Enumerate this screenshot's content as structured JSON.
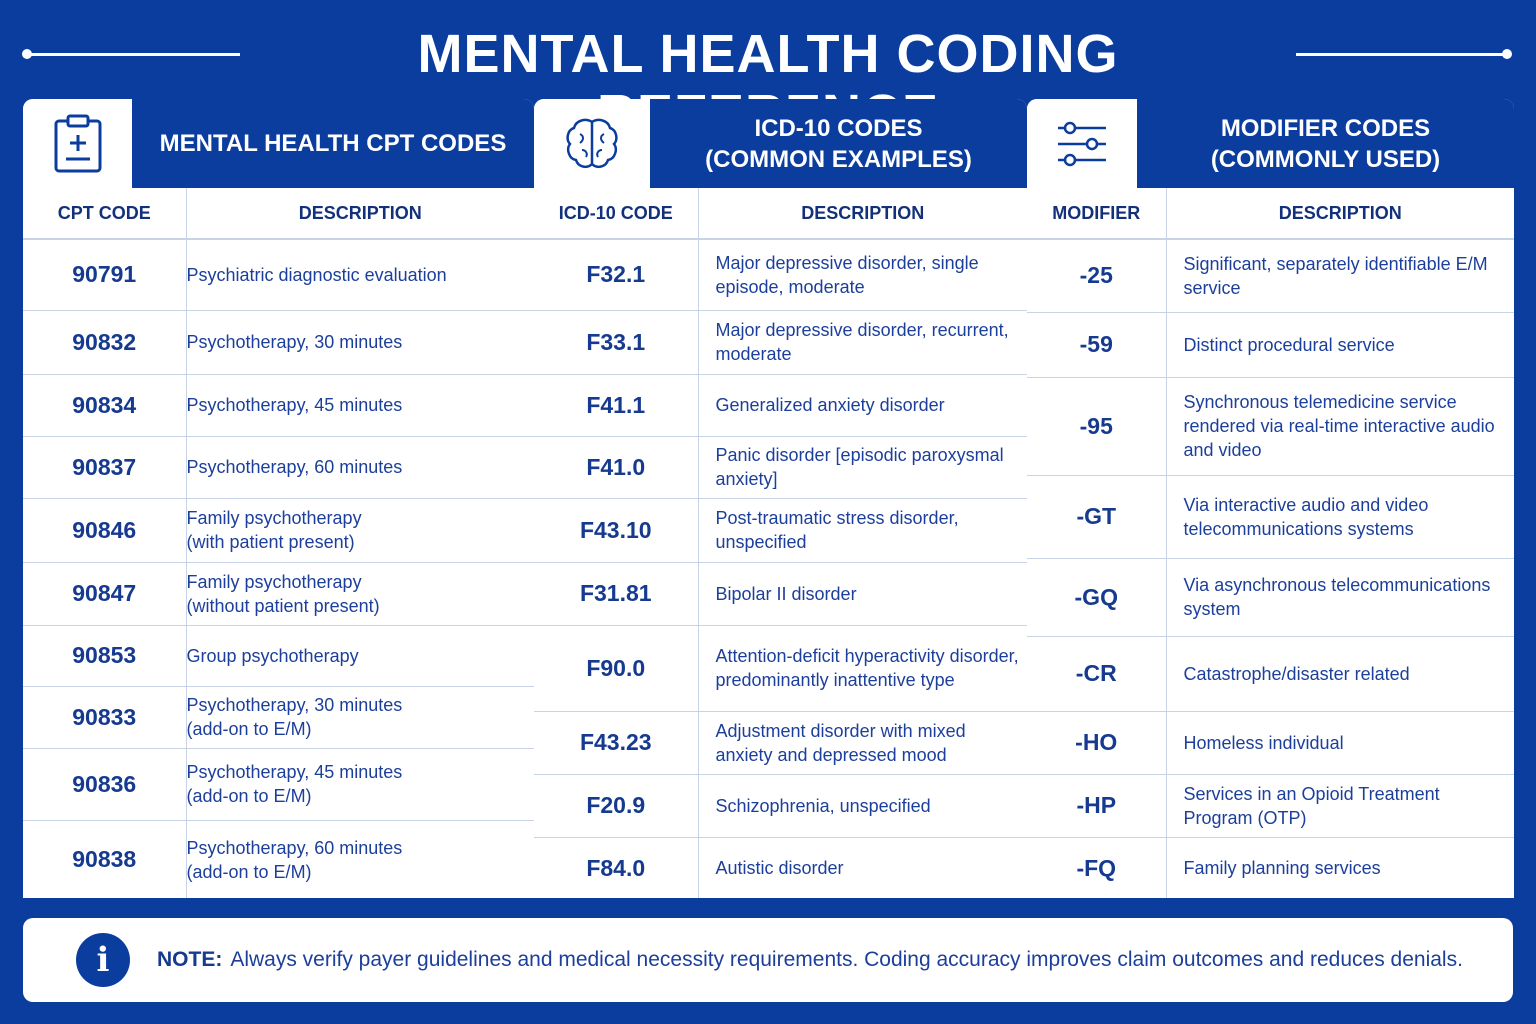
{
  "title": "MENTAL HEALTH CODING REFERENCE",
  "panels": {
    "cpt": {
      "icon": "clipboard-icon",
      "heading": "MENTAL HEALTH CPT CODES",
      "col_code": "CPT CODE",
      "col_desc": "DESCRIPTION",
      "rows": [
        {
          "code": "90791",
          "desc": "Psychiatric diagnostic evaluation"
        },
        {
          "code": "90832",
          "desc": "Psychotherapy, 30 minutes"
        },
        {
          "code": "90834",
          "desc": "Psychotherapy, 45 minutes"
        },
        {
          "code": "90837",
          "desc": "Psychotherapy, 60 minutes"
        },
        {
          "code": "90846",
          "desc": "Family psychotherapy\n(with patient present)"
        },
        {
          "code": "90847",
          "desc": "Family psychotherapy\n(without patient present)"
        },
        {
          "code": "90853",
          "desc": "Group psychotherapy"
        },
        {
          "code": "90833",
          "desc": "Psychotherapy, 30 minutes\n(add-on to E/M)"
        },
        {
          "code": "90836",
          "desc": "Psychotherapy, 45 minutes\n(add-on to E/M)"
        },
        {
          "code": "90838",
          "desc": "Psychotherapy, 60 minutes\n(add-on to E/M)"
        }
      ]
    },
    "icd": {
      "icon": "brain-icon",
      "heading": "ICD-10 CODES\n(COMMON EXAMPLES)",
      "col_code": "ICD-10 CODE",
      "col_desc": "DESCRIPTION",
      "rows": [
        {
          "code": "F32.1",
          "desc": "Major depressive disorder, single episode, moderate"
        },
        {
          "code": "F33.1",
          "desc": "Major depressive disorder, recurrent, moderate"
        },
        {
          "code": "F41.1",
          "desc": "Generalized anxiety disorder"
        },
        {
          "code": "F41.0",
          "desc": "Panic disorder [episodic paroxysmal anxiety]"
        },
        {
          "code": "F43.10",
          "desc": "Post-traumatic stress disorder, unspecified"
        },
        {
          "code": "F31.81",
          "desc": "Bipolar II disorder"
        },
        {
          "code": "F90.0",
          "desc": "Attention-deficit hyperactivity disorder, predominantly inattentive type"
        },
        {
          "code": "F43.23",
          "desc": "Adjustment disorder with mixed anxiety and depressed mood"
        },
        {
          "code": "F20.9",
          "desc": "Schizophrenia, unspecified"
        },
        {
          "code": "F84.0",
          "desc": "Autistic disorder"
        }
      ]
    },
    "mod": {
      "icon": "sliders-icon",
      "heading": "MODIFIER CODES\n(COMMONLY USED)",
      "col_code": "MODIFIER",
      "col_desc": "DESCRIPTION",
      "rows": [
        {
          "code": "-25",
          "desc": "Significant, separately identifiable E/M service"
        },
        {
          "code": "-59",
          "desc": "Distinct procedural service"
        },
        {
          "code": "-95",
          "desc": "Synchronous telemedicine service rendered via real-time interactive audio and video"
        },
        {
          "code": "-GT",
          "desc": "Via interactive audio and video telecommunications systems"
        },
        {
          "code": "-GQ",
          "desc": "Via asynchronous telecommunications system"
        },
        {
          "code": "-CR",
          "desc": "Catastrophe/disaster related"
        },
        {
          "code": "-HO",
          "desc": "Homeless individual"
        },
        {
          "code": "-HP",
          "desc": "Services in an Opioid Treatment Program (OTP)"
        },
        {
          "code": "-FQ",
          "desc": "Family planning services"
        }
      ]
    }
  },
  "note": {
    "icon": "info-icon",
    "label": "NOTE:",
    "text": "Always verify payer guidelines and medical necessity requirements. Coding accuracy improves claim outcomes and reduces denials."
  },
  "colors": {
    "brand_blue": "#0b3d9e",
    "text_blue": "#1c3f9b",
    "grid_line": "#c9d3e6"
  }
}
